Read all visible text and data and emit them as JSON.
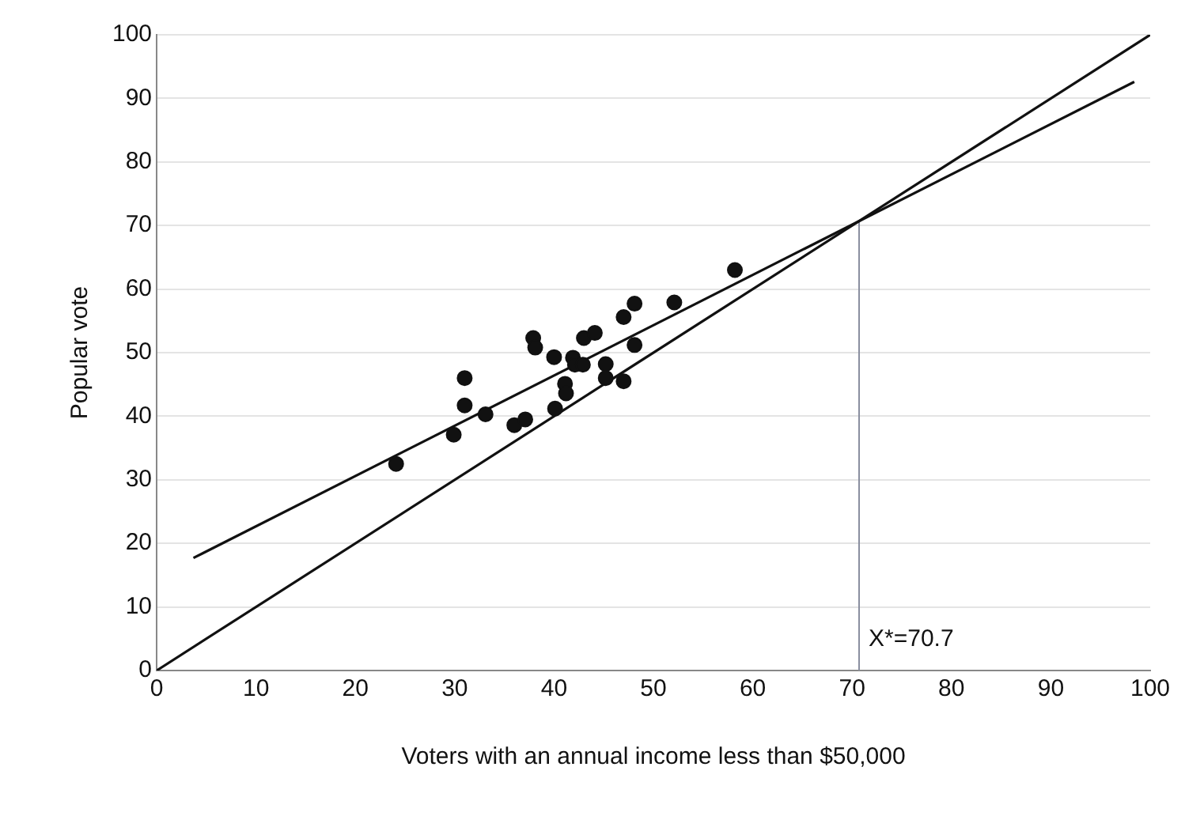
{
  "chart_data": {
    "type": "scatter",
    "xlabel": "Voters with an annual income less than $50,000",
    "ylabel": "Popular vote",
    "xlim": [
      0,
      100
    ],
    "ylim": [
      0,
      100
    ],
    "xticks": [
      0,
      10,
      20,
      30,
      40,
      50,
      60,
      70,
      80,
      90,
      100
    ],
    "yticks": [
      0,
      10,
      20,
      30,
      40,
      50,
      60,
      70,
      80,
      90,
      100
    ],
    "grid": "y",
    "legend": false,
    "marker": "circle",
    "series": [
      {
        "color": "#111111",
        "x": [
          24.1,
          29.9,
          31.0,
          31.0,
          33.1,
          36.0,
          37.1,
          37.9,
          38.1,
          40.0,
          40.1,
          41.1,
          41.2,
          41.9,
          42.1,
          42.9,
          43.0,
          44.1,
          45.2,
          45.2,
          47.0,
          47.0,
          48.1,
          48.1,
          52.1,
          58.2
        ],
        "values": [
          32.5,
          37.1,
          46.0,
          41.7,
          40.3,
          38.6,
          39.5,
          52.3,
          50.8,
          49.3,
          41.2,
          45.1,
          43.6,
          49.2,
          48.1,
          48.1,
          52.3,
          53.1,
          48.2,
          46.0,
          45.5,
          55.6,
          57.7,
          51.2,
          57.9,
          63.0
        ]
      },
      {
        "type": "line",
        "color": "#111111",
        "marker": "none",
        "x": [
          0,
          100
        ],
        "values": [
          0,
          100
        ]
      },
      {
        "type": "line",
        "color": "#111111",
        "marker": "none",
        "x": [
          3.7,
          98.4
        ],
        "values": [
          17.7,
          92.6
        ]
      },
      {
        "type": "line",
        "color": "#8a8fa0",
        "marker": "none",
        "x": [
          70.7,
          70.7
        ],
        "values": [
          0,
          70.7
        ]
      }
    ],
    "annotations": [
      {
        "text": "X*=70.7",
        "x": 70.7,
        "y": 3
      }
    ]
  }
}
